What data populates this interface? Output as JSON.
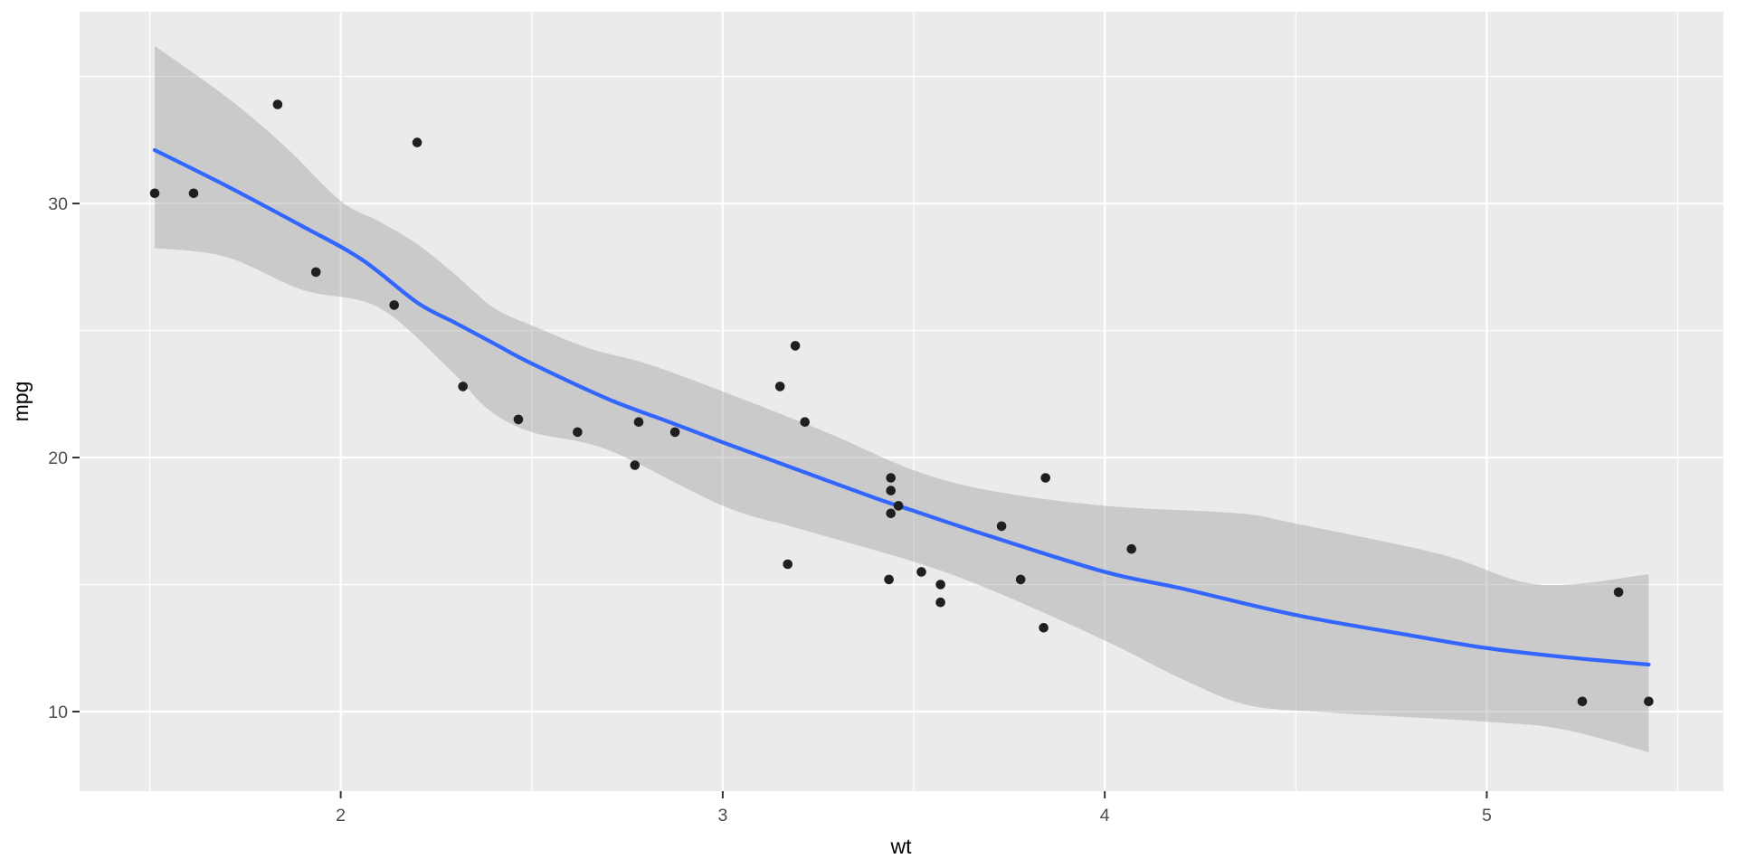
{
  "chart_data": {
    "type": "scatter",
    "title": "",
    "xlabel": "wt",
    "ylabel": "mpg",
    "xlim": [
      1.3165,
      5.6195
    ],
    "ylim": [
      6.868,
      37.547
    ],
    "x_ticks": [
      2,
      3,
      4,
      5
    ],
    "x_minor_ticks": [
      1.5,
      2.5,
      3.5,
      4.5,
      5.5
    ],
    "y_ticks": [
      10,
      20,
      30
    ],
    "y_minor_ticks": [
      15,
      25,
      35
    ],
    "grid": "on",
    "legend": "none",
    "points": [
      [
        2.62,
        21.0
      ],
      [
        2.875,
        21.0
      ],
      [
        2.32,
        22.8
      ],
      [
        3.215,
        21.4
      ],
      [
        3.44,
        18.7
      ],
      [
        3.46,
        18.1
      ],
      [
        3.57,
        14.3
      ],
      [
        3.19,
        24.4
      ],
      [
        3.15,
        22.8
      ],
      [
        3.44,
        19.2
      ],
      [
        3.44,
        17.8
      ],
      [
        4.07,
        16.4
      ],
      [
        3.73,
        17.3
      ],
      [
        3.78,
        15.2
      ],
      [
        5.25,
        10.4
      ],
      [
        5.424,
        10.4
      ],
      [
        5.345,
        14.7
      ],
      [
        2.2,
        32.4
      ],
      [
        1.615,
        30.4
      ],
      [
        1.835,
        33.9
      ],
      [
        2.465,
        21.5
      ],
      [
        3.52,
        15.5
      ],
      [
        3.435,
        15.2
      ],
      [
        3.84,
        13.3
      ],
      [
        3.845,
        19.2
      ],
      [
        1.935,
        27.3
      ],
      [
        2.14,
        26.0
      ],
      [
        1.513,
        30.4
      ],
      [
        3.17,
        15.8
      ],
      [
        2.77,
        19.7
      ],
      [
        3.57,
        15.0
      ],
      [
        2.78,
        21.4
      ]
    ],
    "smooth": {
      "method": "loess",
      "line": [
        [
          1.513,
          32.1
        ],
        [
          1.7,
          30.7
        ],
        [
          1.9,
          29.1
        ],
        [
          2.055,
          27.8
        ],
        [
          2.2,
          26.1
        ],
        [
          2.3,
          25.3
        ],
        [
          2.4,
          24.5
        ],
        [
          2.5,
          23.7
        ],
        [
          2.7,
          22.3
        ],
        [
          2.86,
          21.4
        ],
        [
          3.0,
          20.6
        ],
        [
          3.2,
          19.5
        ],
        [
          3.4,
          18.4
        ],
        [
          3.5,
          17.9
        ],
        [
          3.7,
          16.9
        ],
        [
          4.0,
          15.5
        ],
        [
          4.2,
          14.85
        ],
        [
          4.5,
          13.8
        ],
        [
          4.8,
          13.0
        ],
        [
          5.0,
          12.5
        ],
        [
          5.2,
          12.15
        ],
        [
          5.424,
          11.85
        ]
      ],
      "ci_upper": [
        [
          1.513,
          36.2
        ],
        [
          1.7,
          34.2
        ],
        [
          1.85,
          32.3
        ],
        [
          2.0,
          30.1
        ],
        [
          2.1,
          29.3
        ],
        [
          2.2,
          28.4
        ],
        [
          2.3,
          27.2
        ],
        [
          2.4,
          25.9
        ],
        [
          2.5,
          25.2
        ],
        [
          2.65,
          24.3
        ],
        [
          2.8,
          23.7
        ],
        [
          3.0,
          22.6
        ],
        [
          3.27,
          21.0
        ],
        [
          3.5,
          19.5
        ],
        [
          3.7,
          18.7
        ],
        [
          4.0,
          18.1
        ],
        [
          4.35,
          17.8
        ],
        [
          4.5,
          17.4
        ],
        [
          4.877,
          16.2
        ],
        [
          5.135,
          15.0
        ],
        [
          5.424,
          15.4
        ]
      ],
      "ci_lower": [
        [
          1.513,
          28.25
        ],
        [
          1.7,
          27.9
        ],
        [
          1.9,
          26.6
        ],
        [
          2.1,
          25.9
        ],
        [
          2.29,
          23.4
        ],
        [
          2.386,
          21.9
        ],
        [
          2.5,
          21.0
        ],
        [
          2.7,
          20.3
        ],
        [
          3.0,
          18.1
        ],
        [
          3.2,
          17.2
        ],
        [
          3.5,
          15.9
        ],
        [
          3.7,
          14.8
        ],
        [
          4.0,
          12.8
        ],
        [
          4.2,
          11.3
        ],
        [
          4.377,
          10.25
        ],
        [
          4.6,
          9.95
        ],
        [
          5.0,
          9.6
        ],
        [
          5.2,
          9.3
        ],
        [
          5.424,
          8.4
        ]
      ]
    },
    "colors": {
      "panel_background": "#EBEBEB",
      "gridline": "#FFFFFF",
      "ribbon": "#999999",
      "smooth_line": "#3366FF",
      "point": "#1F1F1F",
      "tick_text": "#4D4D4D",
      "tick_mark": "#333333",
      "axis_title": "#000000"
    }
  }
}
